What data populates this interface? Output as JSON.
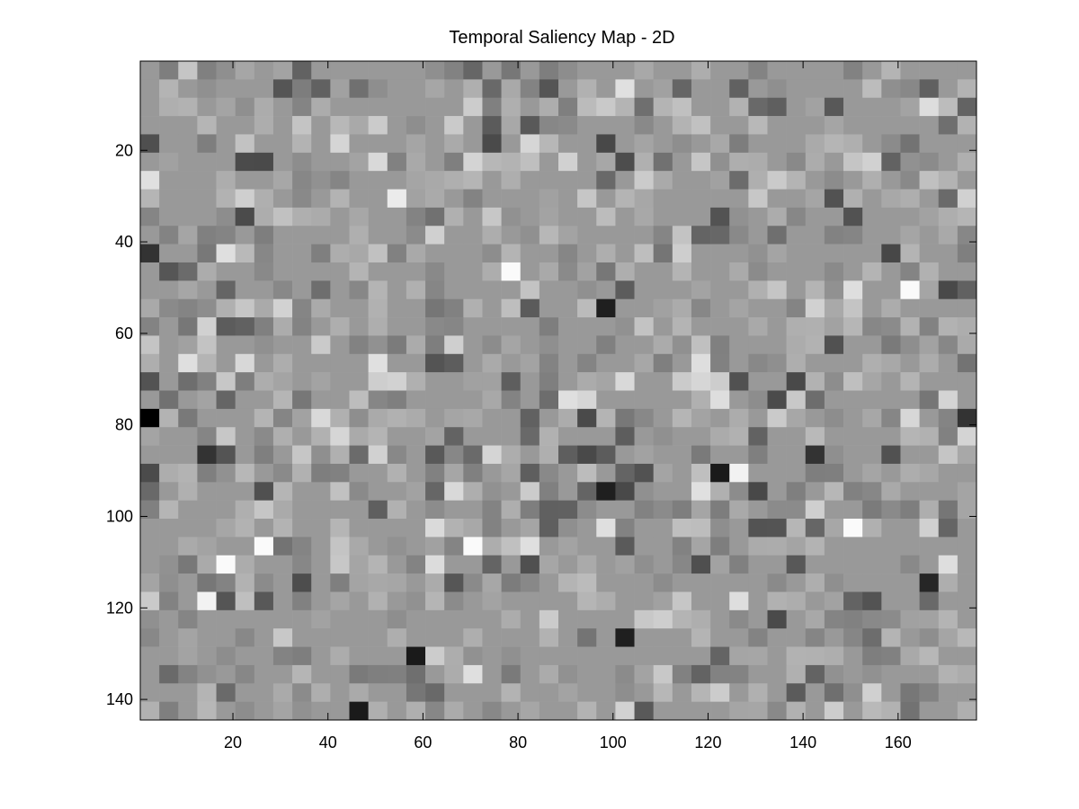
{
  "chart_data": {
    "type": "heatmap",
    "title": "Temporal Saliency Map - 2D",
    "xlabel": "",
    "ylabel": "",
    "colormap": "gray",
    "x_range": [
      0.5,
      176.5
    ],
    "y_range": [
      0.5,
      144.5
    ],
    "y_direction": "reversed",
    "cell_size": 4,
    "grid_cols": 44,
    "grid_rows": 36,
    "x_ticks": [
      20,
      40,
      60,
      80,
      100,
      120,
      140,
      160
    ],
    "x_tick_labels": [
      "20",
      "40",
      "60",
      "80",
      "100",
      "120",
      "140",
      "160"
    ],
    "y_ticks": [
      20,
      40,
      60,
      80,
      100,
      120,
      140
    ],
    "y_tick_labels": [
      "20",
      "40",
      "60",
      "80",
      "100",
      "120",
      "140"
    ],
    "background_level": 0.6,
    "level_range": [
      0,
      1
    ],
    "notable_cells": [
      {
        "x": 2,
        "y": 78,
        "value": 0.0
      },
      {
        "x": 2,
        "y": 42,
        "value": 0.2
      },
      {
        "x": 54,
        "y": 30,
        "value": 0.92
      },
      {
        "x": 78,
        "y": 46,
        "value": 0.98
      },
      {
        "x": 162,
        "y": 50,
        "value": 0.98
      },
      {
        "x": 98,
        "y": 54,
        "value": 0.12
      },
      {
        "x": 122,
        "y": 90,
        "value": 0.1
      },
      {
        "x": 126,
        "y": 90,
        "value": 0.95
      },
      {
        "x": 98,
        "y": 94,
        "value": 0.12
      },
      {
        "x": 150,
        "y": 102,
        "value": 0.98
      },
      {
        "x": 26,
        "y": 106,
        "value": 0.98
      },
      {
        "x": 70,
        "y": 106,
        "value": 0.98
      },
      {
        "x": 18,
        "y": 110,
        "value": 0.98
      },
      {
        "x": 14,
        "y": 118,
        "value": 0.95
      },
      {
        "x": 166,
        "y": 114,
        "value": 0.15
      },
      {
        "x": 102,
        "y": 126,
        "value": 0.12
      },
      {
        "x": 58,
        "y": 130,
        "value": 0.1
      },
      {
        "x": 46,
        "y": 142,
        "value": 0.1
      },
      {
        "x": 174,
        "y": 78,
        "value": 0.2
      },
      {
        "x": 14,
        "y": 86,
        "value": 0.2
      },
      {
        "x": 142,
        "y": 86,
        "value": 0.2
      }
    ]
  }
}
